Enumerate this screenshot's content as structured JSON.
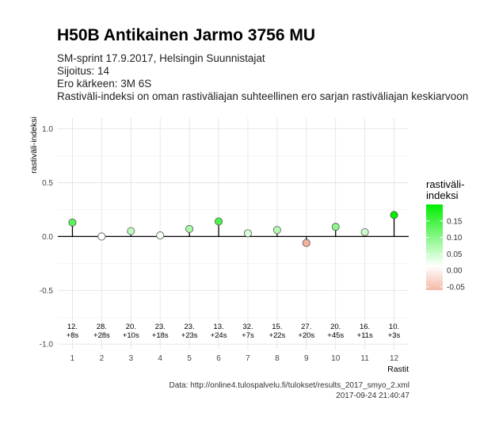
{
  "header": {
    "title": "H50B Antikainen Jarmo 3756 MU",
    "subtitle_lines": [
      "SM-sprint 17.9.2017, Helsingin Suunnistajat",
      "Sijoitus: 14",
      "Ero kärkeen: 3M 6S",
      "Rastiväli-indeksi on oman rastiväliajan suhteellinen ero sarjan rastiväliajan keskiarvoon"
    ]
  },
  "caption": {
    "source": "Data: http://online4.tulospalvelu.fi/tulokset/results_2017_smyo_2.xml",
    "timestamp": "2017-09-24 21:40:47"
  },
  "chart_data": {
    "type": "scatter",
    "title": "H50B Antikainen Jarmo 3756 MU",
    "xlabel": "Rastit",
    "ylabel": "rastiväli-indeksi",
    "x": [
      1,
      2,
      3,
      4,
      5,
      6,
      7,
      8,
      9,
      10,
      11,
      12
    ],
    "values": [
      0.13,
      0.0,
      0.05,
      0.01,
      0.07,
      0.14,
      0.03,
      0.06,
      -0.06,
      0.09,
      0.04,
      0.2
    ],
    "bottom_labels": [
      [
        "12.",
        "+8s"
      ],
      [
        "28.",
        "+28s"
      ],
      [
        "20.",
        "+10s"
      ],
      [
        "23.",
        "+18s"
      ],
      [
        "23.",
        "+23s"
      ],
      [
        "13.",
        "+24s"
      ],
      [
        "32.",
        "+7s"
      ],
      [
        "15.",
        "+22s"
      ],
      [
        "27.",
        "+20s"
      ],
      [
        "20.",
        "+45s"
      ],
      [
        "16.",
        "+11s"
      ],
      [
        "10.",
        "+3s"
      ]
    ],
    "xlim": [
      0.5,
      12.5
    ],
    "ylim": [
      -1.05,
      1.1
    ],
    "y_ticks": [
      "1.0",
      "0.5",
      "0.0",
      "-0.5",
      "-1.0"
    ],
    "x_ticks": [
      "1",
      "2",
      "3",
      "4",
      "5",
      "6",
      "7",
      "8",
      "9",
      "10",
      "11",
      "12"
    ],
    "grid": true,
    "legend": {
      "title_lines": [
        "rastiväli-",
        "indeksi"
      ],
      "ticks": [
        "0.15",
        "0.10",
        "0.05",
        "0.00",
        "-0.05"
      ],
      "placement": "right"
    },
    "colors": {
      "high": "#00ee00",
      "mid": "#ffffff",
      "low": "#f2a08a",
      "stem": "#000000",
      "grid": "#e4e4e4"
    }
  }
}
